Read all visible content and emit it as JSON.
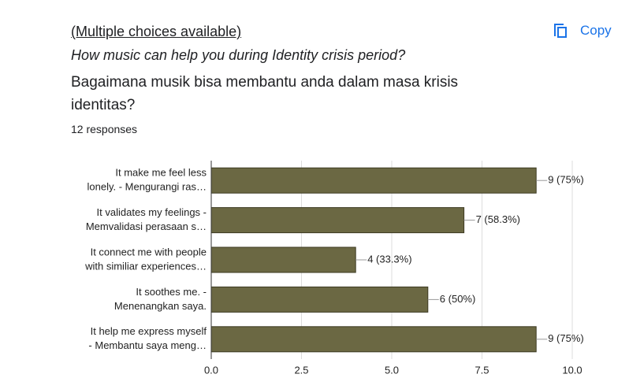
{
  "header": {
    "subtitle": "(Multiple choices available)",
    "question_en": "How music can help you during Identity crisis period?",
    "question_id": "Bagaimana musik bisa membantu anda dalam masa krisis identitas?",
    "responses": "12 responses",
    "copy": "Copy"
  },
  "chart_data": {
    "type": "hbar",
    "categories": [
      [
        "It make me feel less",
        "lonely. - Mengurangi ras…"
      ],
      [
        "It validates my feelings -",
        "Memvalidasi perasaan s…"
      ],
      [
        "It connect me with people",
        "with similiar experiences…"
      ],
      [
        "It soothes me. -",
        "Menenangkan saya."
      ],
      [
        "It help me express myself",
        "- Membantu saya meng…"
      ]
    ],
    "values": [
      9,
      7,
      4,
      6,
      9
    ],
    "value_labels": [
      "9 (75%)",
      "7 (58.3%)",
      "4 (33.3%)",
      "6 (50%)",
      "9 (75%)"
    ],
    "color": "#6b6843",
    "xlim": [
      0,
      10
    ],
    "xticks": [
      {
        "value": 0,
        "label": "0.0"
      },
      2.5,
      {
        "value": 5,
        "label": "5.0"
      },
      7.5,
      {
        "value": 10,
        "label": "10.0"
      }
    ],
    "grid": true
  }
}
